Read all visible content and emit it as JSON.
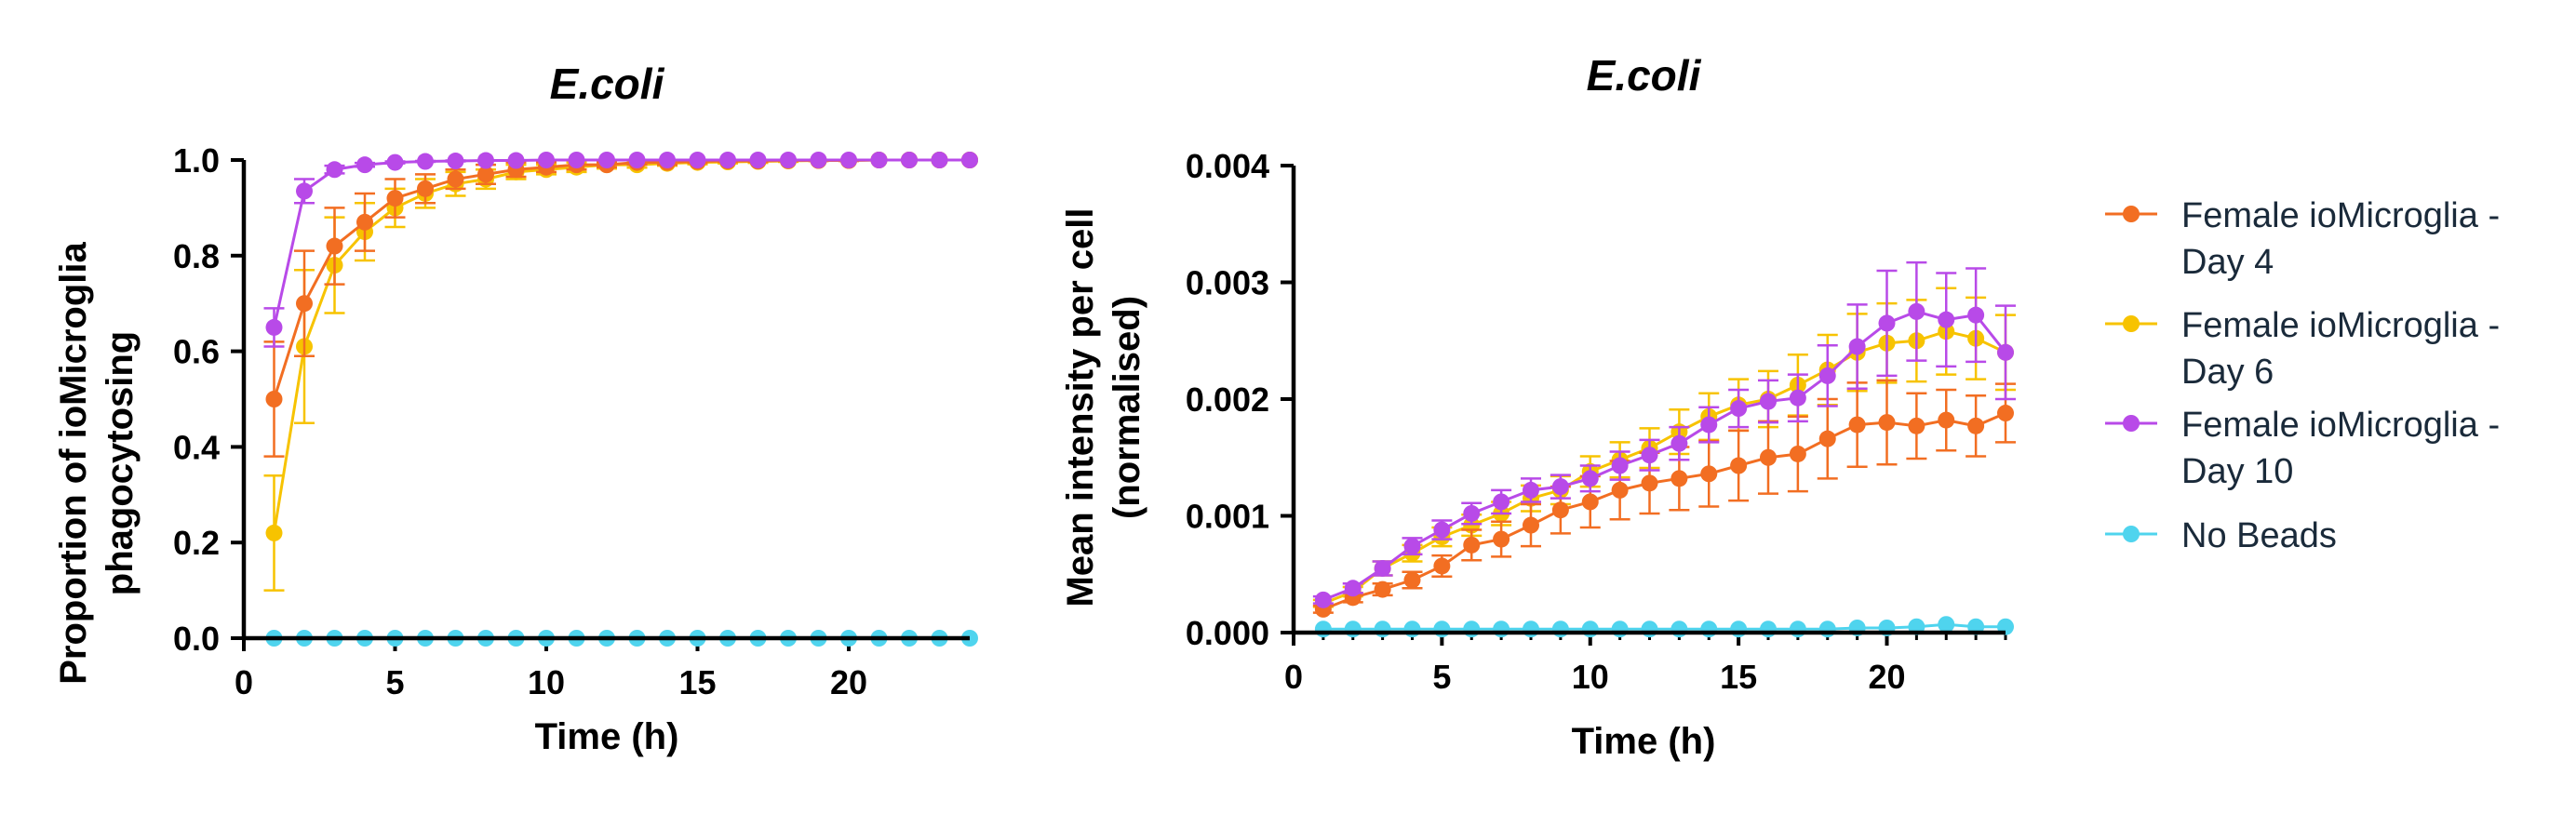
{
  "colors": {
    "female_d4": "#F26E22",
    "female_d6": "#F7C300",
    "female_d10": "#B84AE8",
    "no_beads": "#4FD4EE"
  },
  "legend": {
    "items": [
      {
        "key": "female_d4",
        "line1": "Female ioMicroglia -",
        "line2": "Day 4"
      },
      {
        "key": "female_d6",
        "line1": "Female ioMicroglia -",
        "line2": "Day 6"
      },
      {
        "key": "female_d10",
        "line1": "Female ioMicroglia -",
        "line2": "Day 10"
      },
      {
        "key": "no_beads",
        "line1": "No Beads",
        "line2": ""
      }
    ]
  },
  "chart_data": [
    {
      "type": "line",
      "title": "E.coli",
      "xlabel": "Time (h)",
      "ylabel_line1": "Proportion of ioMicroglia",
      "ylabel_line2": "phagocytosing",
      "xlim": [
        0,
        24
      ],
      "ylim": [
        0,
        1.0
      ],
      "xticks": [
        "0",
        "5",
        "10",
        "15",
        "20"
      ],
      "xtick_values": [
        0,
        5,
        10,
        15,
        20
      ],
      "yticks": [
        "0.0",
        "0.2",
        "0.4",
        "0.6",
        "0.8",
        "1.0"
      ],
      "ytick_values": [
        0,
        0.2,
        0.4,
        0.6,
        0.8,
        1.0
      ],
      "x": [
        1,
        2,
        3,
        4,
        5,
        6,
        7,
        8,
        9,
        10,
        11,
        12,
        13,
        14,
        15,
        16,
        17,
        18,
        19,
        20,
        21,
        22,
        23,
        24
      ],
      "series": [
        {
          "key": "female_d4",
          "name": "Female ioMicroglia - Day 4",
          "values": [
            0.5,
            0.7,
            0.82,
            0.87,
            0.92,
            0.94,
            0.96,
            0.97,
            0.98,
            0.985,
            0.99,
            0.99,
            0.995,
            0.995,
            0.997,
            0.998,
            0.998,
            0.999,
            0.999,
            0.999,
            1.0,
            1.0,
            1.0,
            1.0
          ],
          "errors": [
            0.12,
            0.11,
            0.08,
            0.06,
            0.04,
            0.03,
            0.02,
            0.02,
            0.015,
            0.01,
            0.01,
            0.005,
            0.005,
            0.005,
            0.003,
            0.002,
            0.002,
            0.001,
            0.001,
            0.001,
            0,
            0,
            0,
            0
          ]
        },
        {
          "key": "female_d6",
          "name": "Female ioMicroglia - Day 6",
          "values": [
            0.22,
            0.61,
            0.78,
            0.85,
            0.9,
            0.93,
            0.95,
            0.96,
            0.975,
            0.98,
            0.985,
            0.99,
            0.99,
            0.993,
            0.995,
            0.996,
            0.997,
            0.998,
            0.999,
            0.999,
            1.0,
            1.0,
            1.0,
            1.0
          ],
          "errors": [
            0.12,
            0.16,
            0.1,
            0.06,
            0.04,
            0.03,
            0.025,
            0.02,
            0.015,
            0.01,
            0.01,
            0.008,
            0.006,
            0.005,
            0.004,
            0.003,
            0.003,
            0.002,
            0.001,
            0.001,
            0,
            0,
            0,
            0
          ]
        },
        {
          "key": "female_d10",
          "name": "Female ioMicroglia - Day 10",
          "values": [
            0.65,
            0.935,
            0.98,
            0.99,
            0.995,
            0.997,
            0.998,
            0.999,
            0.999,
            1.0,
            1.0,
            1.0,
            1.0,
            1.0,
            1.0,
            1.0,
            1.0,
            1.0,
            1.0,
            1.0,
            1.0,
            1.0,
            1.0,
            1.0
          ],
          "errors": [
            0.04,
            0.025,
            0.008,
            0.004,
            0.002,
            0.001,
            0.001,
            0,
            0,
            0,
            0,
            0,
            0,
            0,
            0,
            0,
            0,
            0,
            0,
            0,
            0,
            0,
            0,
            0
          ]
        },
        {
          "key": "no_beads",
          "name": "No Beads",
          "values": [
            0,
            0,
            0,
            0,
            0,
            0,
            0,
            0,
            0,
            0,
            0,
            0,
            0,
            0,
            0,
            0,
            0,
            0,
            0,
            0,
            0,
            0,
            0,
            0
          ],
          "errors": [
            0,
            0,
            0,
            0,
            0,
            0,
            0,
            0,
            0,
            0,
            0,
            0,
            0,
            0,
            0,
            0,
            0,
            0,
            0,
            0,
            0,
            0,
            0,
            0
          ]
        }
      ]
    },
    {
      "type": "line",
      "title": "E.coli",
      "xlabel": "Time (h)",
      "ylabel_line1": "Mean intensity per cell",
      "ylabel_line2": "(normalised)",
      "xlim": [
        0,
        24
      ],
      "ylim": [
        0,
        0.004
      ],
      "xticks": [
        "0",
        "5",
        "10",
        "15",
        "20"
      ],
      "xtick_values": [
        0,
        5,
        10,
        15,
        20
      ],
      "yticks": [
        "0.000",
        "0.001",
        "0.002",
        "0.003",
        "0.004"
      ],
      "ytick_values": [
        0,
        0.001,
        0.002,
        0.003,
        0.004
      ],
      "x": [
        1,
        2,
        3,
        4,
        5,
        6,
        7,
        8,
        9,
        10,
        11,
        12,
        13,
        14,
        15,
        16,
        17,
        18,
        19,
        20,
        21,
        22,
        23,
        24
      ],
      "series": [
        {
          "key": "female_d4",
          "name": "Female ioMicroglia - Day 4",
          "values": [
            0.0002,
            0.0003,
            0.00037,
            0.00045,
            0.00057,
            0.00075,
            0.0008,
            0.00092,
            0.00105,
            0.00112,
            0.00122,
            0.00128,
            0.00132,
            0.00136,
            0.00143,
            0.0015,
            0.00153,
            0.00166,
            0.00178,
            0.0018,
            0.00177,
            0.00182,
            0.00177,
            0.00188
          ],
          "errors": [
            3e-05,
            4e-05,
            5e-05,
            7e-05,
            9e-05,
            0.00013,
            0.00015,
            0.00018,
            0.0002,
            0.00022,
            0.00025,
            0.00026,
            0.00027,
            0.00028,
            0.0003,
            0.00031,
            0.00032,
            0.00034,
            0.00036,
            0.00036,
            0.00028,
            0.00026,
            0.00026,
            0.00025
          ]
        },
        {
          "key": "female_d6",
          "name": "Female ioMicroglia - Day 6",
          "values": [
            0.00025,
            0.00035,
            0.00055,
            0.00068,
            0.00082,
            0.00092,
            0.00102,
            0.00115,
            0.00122,
            0.00138,
            0.00148,
            0.00158,
            0.00172,
            0.00185,
            0.00195,
            0.002,
            0.00212,
            0.00225,
            0.0024,
            0.00248,
            0.0025,
            0.00258,
            0.00252,
            0.0024
          ],
          "errors": [
            3e-05,
            4e-05,
            6e-05,
            7e-05,
            8e-05,
            9e-05,
            0.0001,
            0.00011,
            0.00012,
            0.00013,
            0.00015,
            0.00017,
            0.00019,
            0.0002,
            0.00022,
            0.00024,
            0.00026,
            0.0003,
            0.00033,
            0.00034,
            0.00035,
            0.00037,
            0.00035,
            0.00032
          ]
        },
        {
          "key": "female_d10",
          "name": "Female ioMicroglia - Day 10",
          "values": [
            0.00028,
            0.00038,
            0.00055,
            0.00074,
            0.00088,
            0.00102,
            0.00112,
            0.00122,
            0.00125,
            0.00132,
            0.00143,
            0.00152,
            0.00162,
            0.00178,
            0.00192,
            0.00198,
            0.00201,
            0.0022,
            0.00245,
            0.00265,
            0.00275,
            0.00268,
            0.00272,
            0.0024
          ],
          "errors": [
            3e-05,
            4e-05,
            6e-05,
            7e-05,
            8e-05,
            9e-05,
            0.0001,
            0.0001,
            0.0001,
            0.00011,
            0.00012,
            0.00013,
            0.00014,
            0.00015,
            0.00016,
            0.00018,
            0.0002,
            0.00026,
            0.00036,
            0.00045,
            0.00042,
            0.0004,
            0.0004,
            0.0004
          ]
        },
        {
          "key": "no_beads",
          "name": "No Beads",
          "values": [
            3e-05,
            3e-05,
            3e-05,
            3e-05,
            3e-05,
            3e-05,
            3e-05,
            3e-05,
            3e-05,
            3e-05,
            3e-05,
            3e-05,
            3e-05,
            3e-05,
            3e-05,
            3e-05,
            3e-05,
            3e-05,
            4e-05,
            4e-05,
            5e-05,
            7e-05,
            5e-05,
            5e-05
          ],
          "errors": [
            0,
            0,
            0,
            0,
            0,
            0,
            0,
            0,
            0,
            0,
            0,
            0,
            0,
            0,
            0,
            0,
            0,
            0,
            0,
            0,
            0,
            0,
            0,
            0
          ]
        }
      ]
    }
  ]
}
